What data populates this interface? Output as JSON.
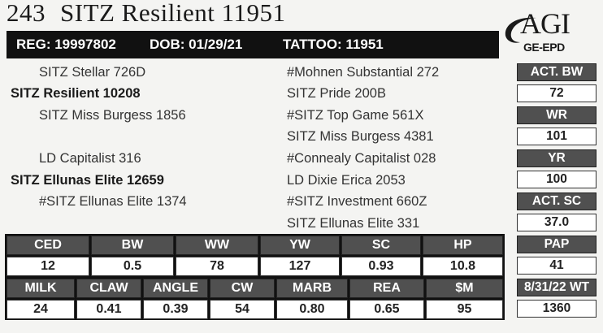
{
  "header": {
    "lot": "243",
    "name": "SITZ Resilient 11951"
  },
  "logo": {
    "agi": "AGI",
    "ge_epd": "GE-EPD"
  },
  "reg_bar": {
    "reg": "REG: 19997802",
    "dob": "DOB: 01/29/21",
    "tattoo": "TATTOO: 11951"
  },
  "pedigree": {
    "sire_sire": "SITZ Stellar 726D",
    "sire": "SITZ Resilient 10208",
    "sire_dam": "SITZ Miss Burgess 1856",
    "dam_sire": "LD Capitalist 316",
    "dam": "SITZ Ellunas Elite 12659",
    "dam_dam": "#SITZ Ellunas Elite 1374",
    "ss_sire": "#Mohnen Substantial 272",
    "ss_dam": "SITZ Pride 200B",
    "sd_sire": "#SITZ Top Game 561X",
    "sd_dam": "SITZ Miss Burgess 4381",
    "ds_sire": "#Connealy Capitalist 028",
    "ds_dam": "LD Dixie Erica 2053",
    "dd_sire": "#SITZ Investment 660Z",
    "dd_dam": "SITZ Ellunas Elite 331"
  },
  "side_stats": [
    {
      "label": "ACT. BW",
      "value": "72"
    },
    {
      "label": "WR",
      "value": "101"
    },
    {
      "label": "YR",
      "value": "100"
    },
    {
      "label": "ACT. SC",
      "value": "37.0"
    },
    {
      "label": "PAP",
      "value": "41"
    },
    {
      "label": "8/31/22 WT",
      "value": "1360"
    }
  ],
  "epd_row1": [
    {
      "label": "CED",
      "value": "12"
    },
    {
      "label": "BW",
      "value": "0.5"
    },
    {
      "label": "WW",
      "value": "78"
    },
    {
      "label": "YW",
      "value": "127"
    },
    {
      "label": "SC",
      "value": "0.93"
    },
    {
      "label": "HP",
      "value": "10.8"
    }
  ],
  "epd_row2": [
    {
      "label": "MILK",
      "value": "24"
    },
    {
      "label": "CLAW",
      "value": "0.41"
    },
    {
      "label": "ANGLE",
      "value": "0.39"
    },
    {
      "label": "CW",
      "value": "54"
    },
    {
      "label": "MARB",
      "value": "0.80"
    },
    {
      "label": "REA",
      "value": "0.65"
    },
    {
      "label": "$M",
      "value": "95"
    }
  ]
}
